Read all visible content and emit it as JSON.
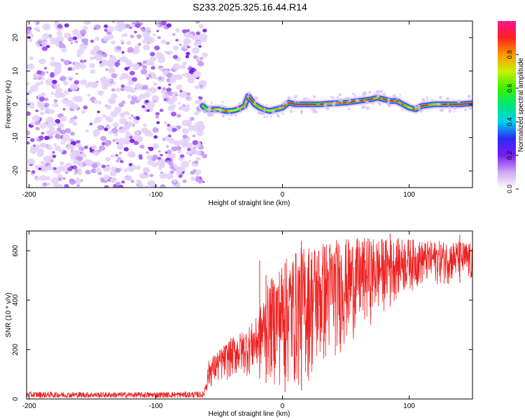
{
  "figure": {
    "title": "S233.2025.325.16.44.R14"
  },
  "chart_data": [
    {
      "type": "heatmap",
      "name": "spectrogram",
      "xlabel": "Height of straight line (km)",
      "ylabel": "Frequency (Hz)",
      "xlim": [
        -202,
        150
      ],
      "ylim": [
        -25,
        25
      ],
      "xticks": [
        -200,
        -100,
        0,
        100
      ],
      "yticks": [
        -20,
        -10,
        0,
        10,
        20
      ],
      "colorbar": {
        "label": "Normalized spectral amplitude",
        "range": [
          0,
          1
        ],
        "ticks": [
          "0.0",
          "0.2",
          "0.4",
          "0.6",
          "0.8"
        ],
        "tick_values": [
          0.0,
          0.2,
          0.4,
          0.6,
          0.8
        ],
        "stops": [
          "#ffffff",
          "#cfa8f5",
          "#7a1cf0",
          "#2a2af5",
          "#00d0f0",
          "#00e87a",
          "#39f000",
          "#c8f000",
          "#ff9800",
          "#ff2020",
          "#ff1493"
        ]
      },
      "noise_region": {
        "x_range": [
          -202,
          -63
        ],
        "f_range": [
          -25,
          25
        ]
      },
      "ridge": {
        "x": [
          -63,
          -60,
          -55,
          -50,
          -45,
          -40,
          -35,
          -30,
          -27,
          -25,
          -22,
          -18,
          -15,
          -10,
          -5,
          0,
          5,
          10,
          20,
          30,
          40,
          50,
          60,
          70,
          75,
          80,
          85,
          90,
          95,
          100,
          105,
          110,
          120,
          130,
          140,
          150
        ],
        "f": [
          -0.5,
          -1.5,
          -1.5,
          -1.5,
          -2,
          -2,
          -1.5,
          -0.5,
          2.5,
          1.5,
          0,
          -1,
          -1.5,
          -2,
          -1.5,
          -1,
          0.5,
          0,
          0,
          0,
          0.3,
          0.5,
          1,
          1.5,
          2,
          1.5,
          1,
          1,
          0,
          -1,
          -1.5,
          -0.5,
          0,
          0,
          0,
          0.3
        ],
        "amplitude": [
          0.55,
          0.7,
          0.85,
          0.7,
          0.85,
          0.65,
          0.75,
          0.8,
          0.95,
          0.9,
          0.7,
          0.75,
          0.85,
          0.7,
          0.75,
          0.85,
          0.9,
          0.95,
          0.9,
          0.85,
          0.8,
          0.9,
          0.85,
          0.9,
          0.8,
          0.9,
          0.95,
          0.85,
          0.8,
          0.75,
          0.85,
          0.9,
          0.8,
          0.9,
          0.95,
          0.85
        ]
      }
    },
    {
      "type": "line",
      "name": "snr",
      "xlabel": "Height of straight line (km)",
      "ylabel": "SNR (10 * v/v)",
      "xlim": [
        -202,
        150
      ],
      "ylim": [
        0,
        680
      ],
      "xticks": [
        -200,
        -100,
        0,
        100
      ],
      "yticks": [
        0,
        200,
        400,
        600
      ],
      "color": "#ee2222",
      "envelope": {
        "x": [
          -202,
          -150,
          -100,
          -62,
          -58,
          -50,
          -40,
          -30,
          -20,
          -15,
          -10,
          0,
          10,
          20,
          30,
          40,
          50,
          60,
          70,
          80,
          90,
          100,
          110,
          120,
          130,
          140,
          150
        ],
        "low": [
          5,
          5,
          5,
          5,
          40,
          60,
          80,
          90,
          90,
          70,
          60,
          30,
          20,
          50,
          100,
          150,
          200,
          260,
          300,
          350,
          400,
          430,
          450,
          460,
          460,
          470,
          460
        ],
        "high": [
          30,
          28,
          28,
          30,
          160,
          200,
          250,
          280,
          330,
          420,
          480,
          560,
          600,
          630,
          640,
          650,
          650,
          650,
          655,
          650,
          650,
          650,
          640,
          640,
          640,
          640,
          630
        ],
        "spikes": [
          {
            "x": -18,
            "y": 560
          },
          {
            "x": -13,
            "y": 500
          },
          {
            "x": 2,
            "y": 550
          },
          {
            "x": 15,
            "y": 640
          },
          {
            "x": 85,
            "y": 670
          },
          {
            "x": 140,
            "y": 665
          }
        ]
      }
    }
  ]
}
